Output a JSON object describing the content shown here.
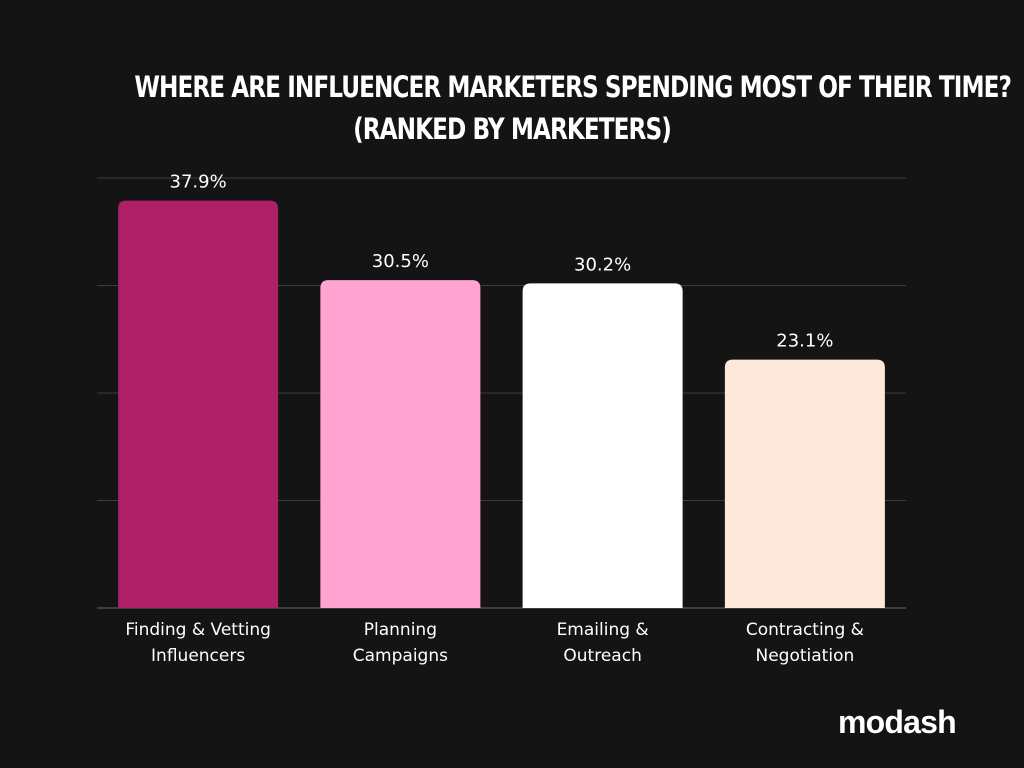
{
  "title_lines": [
    "WHERE ARE INFLUENCER MARKETERS SPENDING MOST OF THEIR TIME?",
    "(RANKED BY MARKETERS)"
  ],
  "brand": "modash",
  "chart_data": {
    "type": "bar",
    "title": "WHERE ARE INFLUENCER MARKETERS SPENDING MOST OF THEIR TIME? (RANKED BY MARKETERS)",
    "categories": [
      [
        "Finding & Vetting",
        "Influencers"
      ],
      [
        "Planning",
        "Campaigns"
      ],
      [
        "Emailing &",
        "Outreach"
      ],
      [
        "Contracting &",
        "Negotiation"
      ]
    ],
    "values": [
      37.9,
      30.5,
      30.2,
      23.1
    ],
    "value_labels": [
      "37.9%",
      "30.5%",
      "30.2%",
      "23.1%"
    ],
    "bar_colors": [
      "#ae2067",
      "#ffa3d0",
      "#ffffff",
      "#fde8dc"
    ],
    "ylim": [
      0,
      40
    ],
    "grid": true,
    "xlabel": "",
    "ylabel": ""
  },
  "colors": {
    "background": "#141414",
    "text": "#ffffff",
    "grid": "#3c3c3c",
    "axis": "#6a6a6a"
  }
}
